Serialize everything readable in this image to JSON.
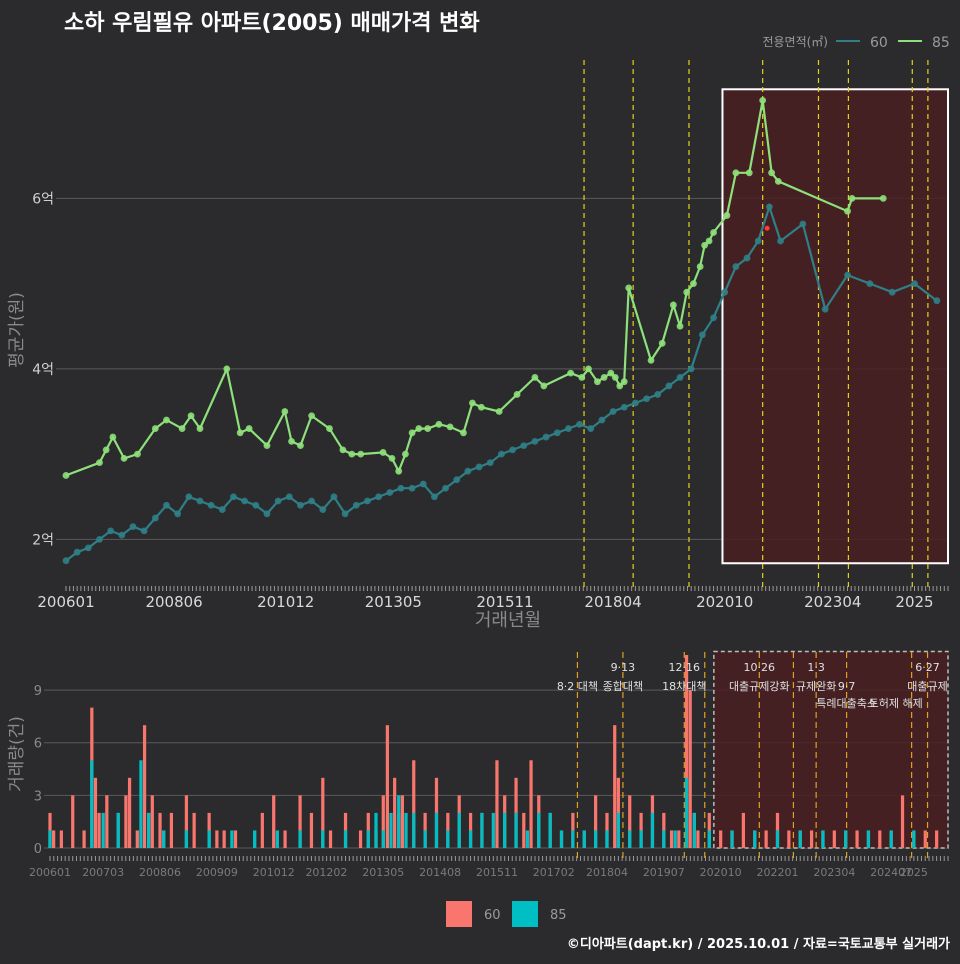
{
  "header": {
    "title": "소하 우림필유 아파트(2005) 매매가격 변화",
    "footer": "©디아파트(dapt.kr) / 2025.10.01 / 자료=국토교통부 실거래가"
  },
  "colors": {
    "background": "#2b2b2d",
    "series_60_line": "#2f7f86",
    "series_85_line": "#8ee07a",
    "bar_60": "#f8766d",
    "bar_85": "#00bfc4",
    "highlight_fill": "#4a1f22",
    "event_line": "#e6d11a",
    "event_line_lower": "#e0a020"
  },
  "chart_data": [
    {
      "id": "price",
      "type": "line",
      "title": "소하 우림필유 아파트(2005) 매매가격 변화",
      "xlabel": "거래년월",
      "ylabel": "평균가(원)",
      "x_tick_labels": [
        "200601",
        "200806",
        "201012",
        "201305",
        "201511",
        "201804",
        "202010",
        "202304",
        "2025"
      ],
      "x_tick_values": [
        2006.0,
        2008.42,
        2010.92,
        2013.33,
        2015.83,
        2018.25,
        2020.75,
        2023.17,
        2025.0
      ],
      "xlim": [
        2006.0,
        2025.75
      ],
      "y_tick_labels": [
        "2억",
        "4억",
        "6억"
      ],
      "y_tick_values": [
        2,
        4,
        6
      ],
      "ylim": [
        1.5,
        7.6
      ],
      "legend_title": "전용면적(㎡)",
      "legend_position": "top-right",
      "highlight_range": [
        2020.7,
        2025.75,
        1.72,
        7.28
      ],
      "event_lines": [
        2017.6,
        2018.7,
        2019.95,
        2021.6,
        2022.85,
        2023.52,
        2024.95,
        2025.3
      ],
      "series": [
        {
          "name": "60",
          "x": [
            2006.0,
            2006.25,
            2006.5,
            2006.75,
            2007.0,
            2007.25,
            2007.5,
            2007.75,
            2008.0,
            2008.25,
            2008.5,
            2008.75,
            2009.0,
            2009.25,
            2009.5,
            2009.75,
            2010.0,
            2010.25,
            2010.5,
            2010.75,
            2011.0,
            2011.25,
            2011.5,
            2011.75,
            2012.0,
            2012.25,
            2012.5,
            2012.75,
            2013.0,
            2013.25,
            2013.5,
            2013.75,
            2014.0,
            2014.25,
            2014.5,
            2014.75,
            2015.0,
            2015.25,
            2015.5,
            2015.75,
            2016.0,
            2016.25,
            2016.5,
            2016.75,
            2017.0,
            2017.25,
            2017.5,
            2017.75,
            2018.0,
            2018.25,
            2018.5,
            2018.75,
            2019.0,
            2019.25,
            2019.5,
            2019.75,
            2020.0,
            2020.25,
            2020.5,
            2020.75,
            2021.0,
            2021.25,
            2021.5,
            2021.75,
            2022.0,
            2022.5,
            2023.0,
            2023.5,
            2024.0,
            2024.5,
            2025.0,
            2025.5
          ],
          "values": [
            1.75,
            1.85,
            1.9,
            2.0,
            2.1,
            2.05,
            2.15,
            2.1,
            2.25,
            2.4,
            2.3,
            2.5,
            2.45,
            2.4,
            2.35,
            2.5,
            2.45,
            2.4,
            2.3,
            2.45,
            2.5,
            2.4,
            2.45,
            2.35,
            2.5,
            2.3,
            2.4,
            2.45,
            2.5,
            2.55,
            2.6,
            2.6,
            2.65,
            2.5,
            2.6,
            2.7,
            2.8,
            2.85,
            2.9,
            3.0,
            3.05,
            3.1,
            3.15,
            3.2,
            3.25,
            3.3,
            3.35,
            3.3,
            3.4,
            3.5,
            3.55,
            3.6,
            3.65,
            3.7,
            3.8,
            3.9,
            4.0,
            4.4,
            4.6,
            4.9,
            5.2,
            5.3,
            5.5,
            5.9,
            5.5,
            5.7,
            4.7,
            5.1,
            5.0,
            4.9,
            5.0,
            4.8
          ]
        },
        {
          "name": "85",
          "x": [
            2006.0,
            2006.75,
            2006.9,
            2007.05,
            2007.3,
            2007.6,
            2008.0,
            2008.25,
            2008.6,
            2008.8,
            2009.0,
            2009.6,
            2009.9,
            2010.1,
            2010.5,
            2010.9,
            2011.05,
            2011.25,
            2011.5,
            2011.9,
            2012.2,
            2012.4,
            2012.6,
            2013.1,
            2013.3,
            2013.45,
            2013.6,
            2013.75,
            2013.9,
            2014.1,
            2014.35,
            2014.6,
            2014.9,
            2015.1,
            2015.3,
            2015.7,
            2016.1,
            2016.5,
            2016.7,
            2017.3,
            2017.55,
            2017.7,
            2017.9,
            2018.05,
            2018.2,
            2018.3,
            2018.4,
            2018.5,
            2018.6,
            2019.1,
            2019.35,
            2019.6,
            2019.75,
            2019.9,
            2020.05,
            2020.2,
            2020.3,
            2020.4,
            2020.5,
            2020.8,
            2021.0,
            2021.3,
            2021.6,
            2021.8,
            2021.95,
            2023.5,
            2023.6,
            2024.3
          ],
          "values": [
            2.75,
            2.9,
            3.05,
            3.2,
            2.95,
            3.0,
            3.3,
            3.4,
            3.3,
            3.45,
            3.3,
            4.0,
            3.25,
            3.3,
            3.1,
            3.5,
            3.15,
            3.1,
            3.45,
            3.3,
            3.05,
            3.0,
            3.0,
            3.02,
            2.95,
            2.8,
            3.0,
            3.25,
            3.3,
            3.3,
            3.35,
            3.32,
            3.25,
            3.6,
            3.55,
            3.5,
            3.7,
            3.9,
            3.8,
            3.95,
            3.9,
            4.0,
            3.85,
            3.9,
            3.95,
            3.9,
            3.8,
            3.85,
            4.95,
            4.1,
            4.3,
            4.75,
            4.5,
            4.9,
            5.0,
            5.2,
            5.45,
            5.5,
            5.6,
            5.8,
            6.3,
            6.3,
            7.15,
            6.3,
            6.2,
            5.85,
            6.0,
            6.0
          ]
        }
      ],
      "outlier_point": {
        "x": 2021.7,
        "y": 5.65
      }
    },
    {
      "id": "volume",
      "type": "bar",
      "ylabel": "거래량(건)",
      "y_tick_labels": [
        "0",
        "3",
        "6",
        "9"
      ],
      "y_tick_values": [
        0,
        3,
        6,
        9
      ],
      "ylim": [
        0,
        11
      ],
      "x_tick_labels": [
        "200601",
        "200703",
        "200806",
        "200909",
        "201012",
        "201202",
        "201305",
        "201408",
        "201511",
        "201702",
        "201804",
        "201907",
        "202010",
        "202201",
        "202304",
        "202407",
        "2025"
      ],
      "x_tick_values": [
        2006.0,
        2007.17,
        2008.42,
        2009.67,
        2010.92,
        2012.08,
        2013.33,
        2014.58,
        2015.83,
        2017.08,
        2018.25,
        2019.5,
        2020.75,
        2022.0,
        2023.25,
        2024.5,
        2025.0
      ],
      "xlim": [
        2006.0,
        2025.75
      ],
      "highlight_range": [
        2020.6,
        2025.75,
        0,
        11.2
      ],
      "event_lines": [
        2017.6,
        2018.6,
        2019.95,
        2020.4,
        2021.6,
        2022.35,
        2022.85,
        2023.52,
        2024.95,
        2025.3
      ],
      "annotations": [
        {
          "x": 2017.6,
          "row": 1,
          "text": "8·2 대책"
        },
        {
          "x": 2018.6,
          "row": 0,
          "text": "9·13"
        },
        {
          "x": 2018.6,
          "row": 1,
          "text": "종합대책"
        },
        {
          "x": 2019.95,
          "row": 0,
          "text": "12·16"
        },
        {
          "x": 2019.95,
          "row": 1,
          "text": "18차대책"
        },
        {
          "x": 2021.6,
          "row": 0,
          "text": "10·26"
        },
        {
          "x": 2021.6,
          "row": 1,
          "text": "대출규제강화"
        },
        {
          "x": 2022.85,
          "row": 0,
          "text": "1·3"
        },
        {
          "x": 2022.85,
          "row": 1,
          "text": "규제완화"
        },
        {
          "x": 2023.52,
          "row": 1,
          "text": "9·7"
        },
        {
          "x": 2023.52,
          "row": 2,
          "text": "특례대출축소"
        },
        {
          "x": 2024.6,
          "row": 2,
          "text": "토허제 해제"
        },
        {
          "x": 2025.3,
          "row": 0,
          "text": "6·27"
        },
        {
          "x": 2025.3,
          "row": 1,
          "text": "대출규제"
        }
      ],
      "legend": [
        "60",
        "85"
      ],
      "legend_position": "bottom",
      "series": [
        {
          "name": "60",
          "x": [
            2006.0,
            2006.08,
            2006.25,
            2006.5,
            2006.75,
            2006.92,
            2007.0,
            2007.08,
            2007.25,
            2007.5,
            2007.67,
            2007.75,
            2007.92,
            2008.08,
            2008.17,
            2008.25,
            2008.42,
            2008.5,
            2008.67,
            2009.0,
            2009.17,
            2009.5,
            2009.67,
            2009.83,
            2010.08,
            2010.5,
            2010.67,
            2010.92,
            2011.17,
            2011.5,
            2011.75,
            2012.0,
            2012.17,
            2012.5,
            2012.83,
            2013.0,
            2013.17,
            2013.33,
            2013.42,
            2013.58,
            2013.67,
            2013.75,
            2014.0,
            2014.25,
            2014.5,
            2014.75,
            2015.0,
            2015.25,
            2015.5,
            2015.83,
            2016.0,
            2016.25,
            2016.42,
            2016.58,
            2016.75,
            2017.0,
            2017.25,
            2017.5,
            2017.75,
            2018.0,
            2018.25,
            2018.42,
            2018.5,
            2018.75,
            2019.0,
            2019.25,
            2019.5,
            2019.67,
            2019.83,
            2020.0,
            2020.08,
            2020.17,
            2020.25,
            2020.5,
            2020.75,
            2021.0,
            2021.25,
            2021.5,
            2021.75,
            2022.0,
            2022.25,
            2022.5,
            2022.75,
            2023.0,
            2023.25,
            2023.5,
            2023.75,
            2024.0,
            2024.25,
            2024.5,
            2024.75,
            2025.0,
            2025.25,
            2025.5
          ],
          "values": [
            2,
            1,
            1,
            3,
            1,
            8,
            4,
            2,
            3,
            2,
            3,
            4,
            1,
            7,
            2,
            3,
            2,
            1,
            2,
            3,
            2,
            2,
            1,
            1,
            1,
            1,
            2,
            3,
            1,
            3,
            2,
            4,
            1,
            2,
            1,
            2,
            1,
            3,
            7,
            4,
            2,
            3,
            5,
            2,
            4,
            2,
            3,
            2,
            2,
            5,
            3,
            4,
            2,
            5,
            3,
            2,
            1,
            2,
            1,
            3,
            2,
            7,
            4,
            3,
            2,
            3,
            2,
            1,
            1,
            11,
            9,
            2,
            1,
            2,
            1,
            1,
            2,
            1,
            1,
            2,
            1,
            1,
            1,
            1,
            1,
            1,
            1,
            1,
            1,
            1,
            3,
            1,
            1,
            1
          ]
        },
        {
          "name": "85",
          "x": [
            2006.0,
            2006.92,
            2007.17,
            2007.5,
            2008.0,
            2008.17,
            2008.5,
            2009.0,
            2009.5,
            2010.0,
            2010.5,
            2011.0,
            2011.5,
            2012.0,
            2012.5,
            2013.0,
            2013.17,
            2013.33,
            2013.5,
            2013.67,
            2013.83,
            2014.0,
            2014.25,
            2014.5,
            2014.75,
            2015.0,
            2015.25,
            2015.5,
            2015.75,
            2016.0,
            2016.25,
            2016.5,
            2016.75,
            2017.0,
            2017.25,
            2017.5,
            2017.75,
            2018.0,
            2018.25,
            2018.5,
            2018.75,
            2019.0,
            2019.25,
            2019.5,
            2019.75,
            2020.0,
            2020.17,
            2020.5,
            2021.0,
            2021.5,
            2022.0,
            2022.5,
            2023.0,
            2023.5,
            2024.0,
            2024.5,
            2025.0
          ],
          "values": [
            1,
            5,
            2,
            2,
            5,
            2,
            1,
            1,
            1,
            1,
            1,
            1,
            1,
            1,
            1,
            1,
            2,
            1,
            2,
            3,
            2,
            2,
            1,
            2,
            1,
            2,
            1,
            2,
            2,
            2,
            2,
            1,
            2,
            2,
            1,
            1,
            1,
            1,
            1,
            2,
            1,
            1,
            2,
            1,
            1,
            4,
            2,
            1,
            1,
            1,
            1,
            1,
            1,
            1,
            1,
            1,
            1
          ]
        }
      ]
    }
  ]
}
